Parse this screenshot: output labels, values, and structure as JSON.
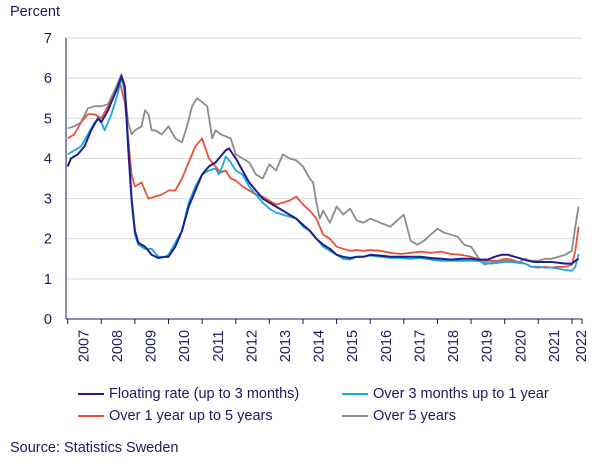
{
  "chart_data": {
    "type": "line",
    "title": "",
    "ylabel": "Percent",
    "xlabel": "",
    "ylim": [
      0,
      7
    ],
    "y_ticks": [
      "0",
      "1",
      "2",
      "3",
      "4",
      "5",
      "6",
      "7"
    ],
    "x_range": [
      2006.95,
      2022.3
    ],
    "x_ticks": [
      "2007",
      "2008",
      "2009",
      "2010",
      "2011",
      "2012",
      "2013",
      "2014",
      "2015",
      "2016",
      "2017",
      "2018",
      "2019",
      "2020",
      "2021",
      "2022"
    ],
    "grid": "horizontal",
    "legend_position": "bottom",
    "series": [
      {
        "name": "Floating rate (up to 3 months)",
        "color": "#1e1e8c",
        "x": [
          2007.0,
          2007.1,
          2007.3,
          2007.5,
          2007.7,
          2007.9,
          2008.0,
          2008.2,
          2008.4,
          2008.5,
          2008.6,
          2008.7,
          2008.8,
          2008.9,
          2009.0,
          2009.1,
          2009.3,
          2009.5,
          2009.7,
          2009.9,
          2010.0,
          2010.2,
          2010.4,
          2010.6,
          2010.8,
          2011.0,
          2011.2,
          2011.4,
          2011.5,
          2011.6,
          2011.7,
          2011.8,
          2012.0,
          2012.2,
          2012.4,
          2012.6,
          2012.8,
          2013.0,
          2013.2,
          2013.4,
          2013.6,
          2013.8,
          2014.0,
          2014.2,
          2014.4,
          2014.6,
          2014.8,
          2015.0,
          2015.2,
          2015.4,
          2015.6,
          2015.8,
          2016.0,
          2016.3,
          2016.6,
          2016.9,
          2017.2,
          2017.5,
          2017.8,
          2018.1,
          2018.4,
          2018.7,
          2019.0,
          2019.2,
          2019.5,
          2019.7,
          2019.9,
          2020.1,
          2020.3,
          2020.5,
          2020.7,
          2020.9,
          2021.0,
          2021.2,
          2021.4,
          2021.6,
          2021.8,
          2022.0,
          2022.1,
          2022.2
        ],
        "values": [
          3.8,
          4.0,
          4.1,
          4.3,
          4.7,
          5.0,
          4.9,
          5.2,
          5.6,
          5.8,
          6.05,
          5.8,
          4.3,
          3.0,
          2.2,
          1.9,
          1.8,
          1.6,
          1.52,
          1.55,
          1.55,
          1.8,
          2.2,
          2.8,
          3.2,
          3.6,
          3.8,
          3.9,
          4.0,
          4.1,
          4.2,
          4.25,
          4.0,
          3.7,
          3.4,
          3.2,
          3.0,
          2.9,
          2.8,
          2.7,
          2.6,
          2.5,
          2.35,
          2.2,
          2.0,
          1.85,
          1.75,
          1.6,
          1.55,
          1.52,
          1.55,
          1.55,
          1.6,
          1.58,
          1.55,
          1.55,
          1.55,
          1.55,
          1.52,
          1.5,
          1.48,
          1.5,
          1.5,
          1.48,
          1.48,
          1.55,
          1.6,
          1.6,
          1.55,
          1.5,
          1.45,
          1.42,
          1.42,
          1.42,
          1.42,
          1.4,
          1.38,
          1.38,
          1.45,
          1.5
        ]
      },
      {
        "name": "Over 3 months up to 1 year",
        "color": "#1aa7e0",
        "x": [
          2007.0,
          2007.2,
          2007.4,
          2007.6,
          2007.8,
          2007.95,
          2008.1,
          2008.3,
          2008.45,
          2008.6,
          2008.7,
          2008.8,
          2008.9,
          2009.0,
          2009.1,
          2009.3,
          2009.5,
          2009.7,
          2009.9,
          2010.0,
          2010.2,
          2010.4,
          2010.6,
          2010.8,
          2011.0,
          2011.2,
          2011.4,
          2011.5,
          2011.6,
          2011.7,
          2011.85,
          2012.0,
          2012.2,
          2012.4,
          2012.6,
          2012.8,
          2013.0,
          2013.2,
          2013.4,
          2013.6,
          2013.8,
          2014.0,
          2014.2,
          2014.4,
          2014.6,
          2014.8,
          2015.0,
          2015.2,
          2015.4,
          2015.6,
          2015.8,
          2016.0,
          2016.3,
          2016.6,
          2016.9,
          2017.2,
          2017.5,
          2017.8,
          2018.1,
          2018.4,
          2018.7,
          2019.0,
          2019.2,
          2019.4,
          2019.6,
          2019.8,
          2020.0,
          2020.2,
          2020.4,
          2020.6,
          2020.8,
          2021.0,
          2021.2,
          2021.4,
          2021.6,
          2021.8,
          2022.0,
          2022.1,
          2022.2
        ],
        "values": [
          4.1,
          4.2,
          4.3,
          4.6,
          4.9,
          5.0,
          4.7,
          5.1,
          5.5,
          6.0,
          5.7,
          4.2,
          2.9,
          2.1,
          1.85,
          1.75,
          1.75,
          1.55,
          1.55,
          1.6,
          1.9,
          2.2,
          2.9,
          3.3,
          3.6,
          3.7,
          3.75,
          3.6,
          3.8,
          4.05,
          3.9,
          3.7,
          3.6,
          3.3,
          3.1,
          2.9,
          2.75,
          2.65,
          2.6,
          2.55,
          2.5,
          2.3,
          2.2,
          2.0,
          1.8,
          1.7,
          1.6,
          1.5,
          1.48,
          1.55,
          1.55,
          1.58,
          1.55,
          1.52,
          1.52,
          1.5,
          1.52,
          1.48,
          1.45,
          1.45,
          1.45,
          1.45,
          1.45,
          1.4,
          1.38,
          1.4,
          1.42,
          1.42,
          1.4,
          1.38,
          1.3,
          1.3,
          1.28,
          1.28,
          1.25,
          1.22,
          1.2,
          1.3,
          1.62
        ]
      },
      {
        "name": "Over 1 year up to 5 years",
        "color": "#e8533a",
        "x": [
          2007.0,
          2007.2,
          2007.4,
          2007.6,
          2007.8,
          2008.0,
          2008.2,
          2008.4,
          2008.55,
          2008.7,
          2008.8,
          2008.9,
          2009.0,
          2009.2,
          2009.4,
          2009.6,
          2009.8,
          2010.0,
          2010.2,
          2010.4,
          2010.6,
          2010.8,
          2011.0,
          2011.2,
          2011.3,
          2011.4,
          2011.55,
          2011.7,
          2011.85,
          2012.0,
          2012.2,
          2012.4,
          2012.6,
          2012.8,
          2013.0,
          2013.2,
          2013.4,
          2013.6,
          2013.8,
          2014.0,
          2014.2,
          2014.4,
          2014.6,
          2014.8,
          2015.0,
          2015.2,
          2015.4,
          2015.6,
          2015.8,
          2016.0,
          2016.3,
          2016.6,
          2016.9,
          2017.2,
          2017.5,
          2017.8,
          2018.1,
          2018.4,
          2018.7,
          2019.0,
          2019.2,
          2019.4,
          2019.6,
          2019.8,
          2020.0,
          2020.2,
          2020.4,
          2020.6,
          2020.8,
          2021.0,
          2021.2,
          2021.4,
          2021.6,
          2021.8,
          2022.0,
          2022.1,
          2022.2
        ],
        "values": [
          4.5,
          4.6,
          4.9,
          5.1,
          5.1,
          5.0,
          5.3,
          5.6,
          5.9,
          5.4,
          4.5,
          3.6,
          3.3,
          3.4,
          3.0,
          3.05,
          3.1,
          3.2,
          3.2,
          3.5,
          3.9,
          4.3,
          4.5,
          4.0,
          3.9,
          3.8,
          3.65,
          3.7,
          3.5,
          3.45,
          3.3,
          3.2,
          3.1,
          3.05,
          2.95,
          2.85,
          2.9,
          2.95,
          3.05,
          2.85,
          2.7,
          2.5,
          2.1,
          2.0,
          1.8,
          1.75,
          1.7,
          1.72,
          1.7,
          1.72,
          1.7,
          1.65,
          1.62,
          1.65,
          1.68,
          1.65,
          1.68,
          1.62,
          1.6,
          1.55,
          1.5,
          1.45,
          1.45,
          1.45,
          1.5,
          1.48,
          1.42,
          1.38,
          1.3,
          1.28,
          1.3,
          1.28,
          1.3,
          1.3,
          1.35,
          1.7,
          2.3
        ]
      },
      {
        "name": "Over 5 years",
        "color": "#8c8c8c",
        "x": [
          2007.0,
          2007.2,
          2007.4,
          2007.6,
          2007.8,
          2008.0,
          2008.2,
          2008.4,
          2008.5,
          2008.6,
          2008.7,
          2008.8,
          2008.9,
          2009.0,
          2009.2,
          2009.3,
          2009.4,
          2009.5,
          2009.6,
          2009.8,
          2010.0,
          2010.2,
          2010.4,
          2010.55,
          2010.7,
          2010.85,
          2011.0,
          2011.15,
          2011.3,
          2011.4,
          2011.55,
          2011.7,
          2011.85,
          2012.0,
          2012.2,
          2012.4,
          2012.6,
          2012.8,
          2013.0,
          2013.2,
          2013.4,
          2013.6,
          2013.8,
          2014.0,
          2014.2,
          2014.3,
          2014.4,
          2014.5,
          2014.6,
          2014.8,
          2015.0,
          2015.2,
          2015.4,
          2015.6,
          2015.8,
          2016.0,
          2016.3,
          2016.6,
          2016.8,
          2017.0,
          2017.2,
          2017.4,
          2017.6,
          2017.8,
          2018.0,
          2018.2,
          2018.4,
          2018.6,
          2018.8,
          2019.0,
          2019.2,
          2019.4,
          2019.6,
          2019.8,
          2020.0,
          2020.2,
          2020.4,
          2020.6,
          2020.8,
          2021.0,
          2021.2,
          2021.4,
          2021.6,
          2021.8,
          2022.0,
          2022.1,
          2022.2
        ],
        "values": [
          4.75,
          4.8,
          4.9,
          5.25,
          5.3,
          5.3,
          5.35,
          5.7,
          5.9,
          6.1,
          5.6,
          4.9,
          4.6,
          4.7,
          4.8,
          5.2,
          5.1,
          4.7,
          4.7,
          4.6,
          4.8,
          4.5,
          4.4,
          4.8,
          5.3,
          5.5,
          5.4,
          5.3,
          4.5,
          4.7,
          4.6,
          4.55,
          4.5,
          4.1,
          4.0,
          3.9,
          3.6,
          3.5,
          3.85,
          3.7,
          4.1,
          4.0,
          3.95,
          3.8,
          3.5,
          3.4,
          2.9,
          2.5,
          2.7,
          2.4,
          2.8,
          2.6,
          2.75,
          2.45,
          2.4,
          2.5,
          2.4,
          2.3,
          2.45,
          2.6,
          1.95,
          1.85,
          1.95,
          2.1,
          2.25,
          2.15,
          2.1,
          2.05,
          1.85,
          1.8,
          1.55,
          1.35,
          1.4,
          1.45,
          1.45,
          1.45,
          1.4,
          1.5,
          1.45,
          1.45,
          1.5,
          1.5,
          1.55,
          1.6,
          1.7,
          2.3,
          2.8
        ]
      }
    ]
  },
  "source_note": "Source: Statistics Sweden"
}
